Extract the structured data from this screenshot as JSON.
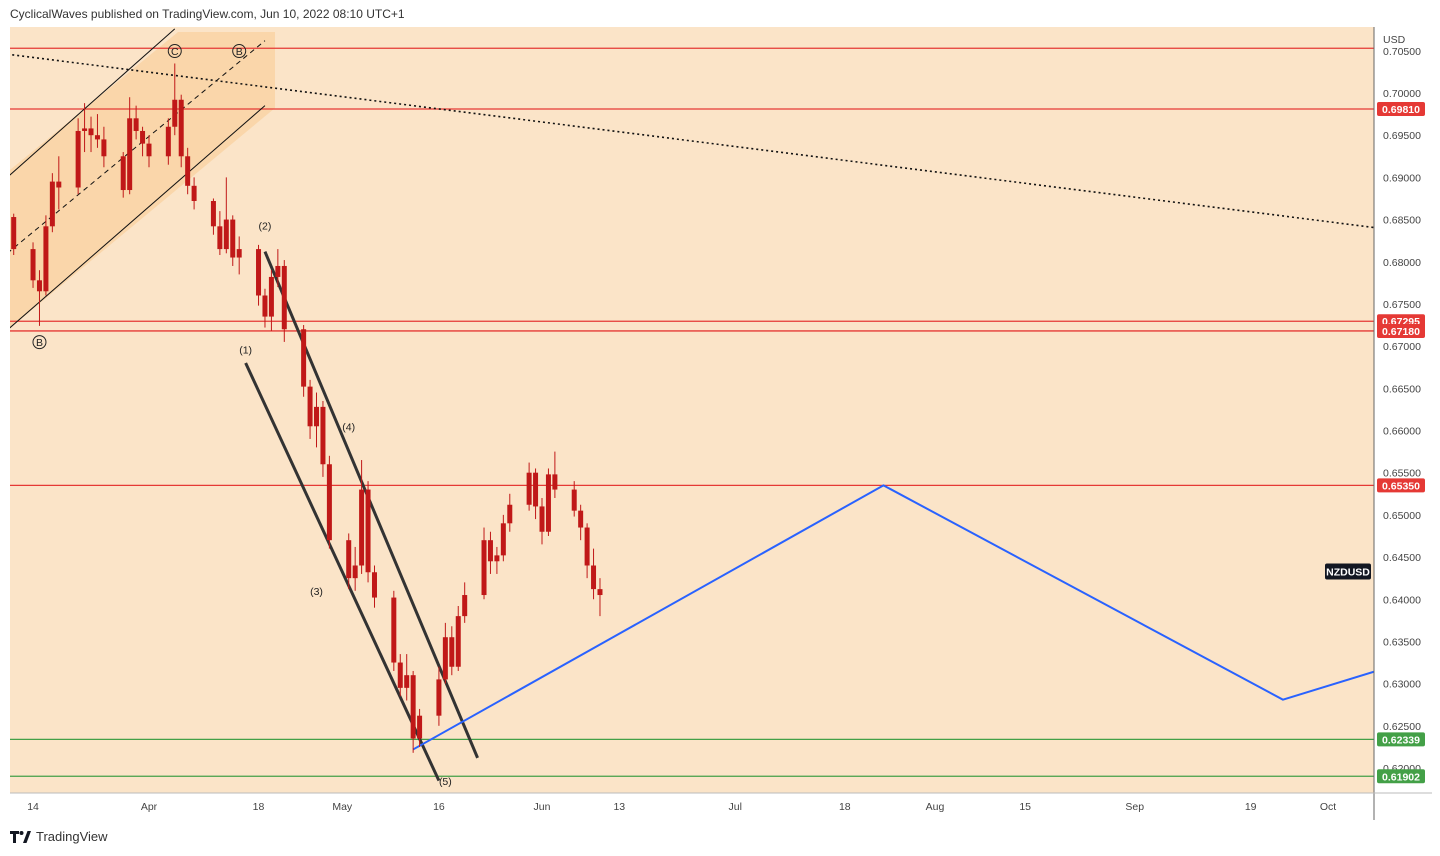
{
  "header": {
    "text": "CyclicalWaves published on TradingView.com, Jun 10, 2022 08:10 UTC+1"
  },
  "footer": {
    "brand": "TradingView",
    "logo_icon": "tradingview-logo-icon"
  },
  "colors": {
    "background": "#fbe4c8",
    "channel_fill": "#f9d4a4",
    "candle": "#c01818",
    "resistance": "#e53935",
    "support": "#43a047",
    "projection": "#2962ff",
    "trendline": "#111111"
  },
  "chart_data": {
    "type": "candlestick",
    "symbol": "NZDUSD",
    "currency": "USD",
    "y_ticks": [
      "0.70500",
      "0.70000",
      "0.69500",
      "0.69000",
      "0.68500",
      "0.68000",
      "0.67500",
      "0.67000",
      "0.66500",
      "0.66000",
      "0.65500",
      "0.65000",
      "0.64500",
      "0.64000",
      "0.63500",
      "0.63000",
      "0.62500",
      "0.62000"
    ],
    "x_ticks": [
      "14",
      "Apr",
      "18",
      "May",
      "16",
      "Jun",
      "13",
      "Jul",
      "18",
      "Aug",
      "15",
      "Sep",
      "19",
      "Oct"
    ],
    "price_levels": [
      {
        "value": 0.7053,
        "label": "",
        "kind": "resistance"
      },
      {
        "value": 0.6981,
        "label": "0.69810",
        "kind": "resistance"
      },
      {
        "value": 0.67295,
        "label": "0.67295",
        "kind": "resistance"
      },
      {
        "value": 0.6718,
        "label": "0.67180",
        "kind": "resistance"
      },
      {
        "value": 0.6535,
        "label": "0.65350",
        "kind": "resistance"
      },
      {
        "value": 0.62339,
        "label": "0.62339",
        "kind": "support"
      },
      {
        "value": 0.61902,
        "label": "0.61902",
        "kind": "support"
      }
    ],
    "symbol_price": 0.6408,
    "wave_labels": [
      {
        "text": "C",
        "circled": true,
        "date": "2022-04-05",
        "price": 0.7045
      },
      {
        "text": "B",
        "circled": true,
        "date": "2022-04-15",
        "price": 0.7045
      },
      {
        "text": "B",
        "circled": true,
        "date": "2022-03-15",
        "price": 0.67
      },
      {
        "text": "(1)",
        "circled": false,
        "date": "2022-04-16",
        "price": 0.6691
      },
      {
        "text": "(2)",
        "circled": false,
        "date": "2022-04-19",
        "price": 0.6838
      },
      {
        "text": "(3)",
        "circled": false,
        "date": "2022-04-27",
        "price": 0.6405
      },
      {
        "text": "(4)",
        "circled": false,
        "date": "2022-05-02",
        "price": 0.66
      },
      {
        "text": "(5)",
        "circled": false,
        "date": "2022-05-17",
        "price": 0.618
      }
    ],
    "projection_path": [
      {
        "date": "2022-05-12",
        "price": 0.6222
      },
      {
        "date": "2022-07-24",
        "price": 0.6535
      },
      {
        "date": "2022-09-24",
        "price": 0.6281
      },
      {
        "date": "2022-10-17",
        "price": 0.6335
      }
    ],
    "drawn_lines": [
      {
        "style": "dotted",
        "from": {
          "date": "2022-03-10",
          "price": 0.7046
        },
        "to": {
          "date": "2022-10-17",
          "price": 0.6832
        }
      },
      {
        "style": "channel-upper",
        "from": {
          "date": "2022-03-10",
          "price": 0.69
        },
        "to": {
          "date": "2022-04-05",
          "price": 0.7076
        }
      },
      {
        "style": "channel-lower",
        "from": {
          "date": "2022-03-10",
          "price": 0.6719
        },
        "to": {
          "date": "2022-04-19",
          "price": 0.6985
        }
      },
      {
        "style": "channel-mid",
        "from": {
          "date": "2022-03-10",
          "price": 0.681
        },
        "to": {
          "date": "2022-04-19",
          "price": 0.7062
        }
      },
      {
        "style": "channel-down",
        "from": {
          "date": "2022-04-19",
          "price": 0.6812
        },
        "to": {
          "date": "2022-05-22",
          "price": 0.6212
        }
      },
      {
        "style": "channel-down",
        "from": {
          "date": "2022-04-16",
          "price": 0.668
        },
        "to": {
          "date": "2022-05-16",
          "price": 0.6185
        }
      }
    ],
    "candles": [
      {
        "date": "2022-03-10",
        "o": 0.6863,
        "h": 0.6868,
        "l": 0.6843,
        "c": 0.6853
      },
      {
        "date": "2022-03-11",
        "o": 0.6853,
        "h": 0.6857,
        "l": 0.6808,
        "c": 0.6815
      },
      {
        "date": "2022-03-14",
        "o": 0.6815,
        "h": 0.6823,
        "l": 0.6769,
        "c": 0.6778
      },
      {
        "date": "2022-03-15",
        "o": 0.6778,
        "h": 0.679,
        "l": 0.6724,
        "c": 0.6765
      },
      {
        "date": "2022-03-16",
        "o": 0.6765,
        "h": 0.6855,
        "l": 0.676,
        "c": 0.6842
      },
      {
        "date": "2022-03-17",
        "o": 0.6842,
        "h": 0.6905,
        "l": 0.6835,
        "c": 0.6895
      },
      {
        "date": "2022-03-18",
        "o": 0.6895,
        "h": 0.6925,
        "l": 0.6862,
        "c": 0.6888
      },
      {
        "date": "2022-03-21",
        "o": 0.6888,
        "h": 0.697,
        "l": 0.688,
        "c": 0.6955
      },
      {
        "date": "2022-03-22",
        "o": 0.6955,
        "h": 0.6988,
        "l": 0.693,
        "c": 0.6958
      },
      {
        "date": "2022-03-23",
        "o": 0.6958,
        "h": 0.6972,
        "l": 0.693,
        "c": 0.695
      },
      {
        "date": "2022-03-24",
        "o": 0.695,
        "h": 0.6975,
        "l": 0.6935,
        "c": 0.6945
      },
      {
        "date": "2022-03-25",
        "o": 0.6945,
        "h": 0.696,
        "l": 0.6912,
        "c": 0.6925
      },
      {
        "date": "2022-03-28",
        "o": 0.6925,
        "h": 0.693,
        "l": 0.6876,
        "c": 0.6885
      },
      {
        "date": "2022-03-29",
        "o": 0.6885,
        "h": 0.6995,
        "l": 0.688,
        "c": 0.697
      },
      {
        "date": "2022-03-30",
        "o": 0.697,
        "h": 0.6985,
        "l": 0.6945,
        "c": 0.6955
      },
      {
        "date": "2022-03-31",
        "o": 0.6955,
        "h": 0.696,
        "l": 0.6925,
        "c": 0.694
      },
      {
        "date": "2022-04-01",
        "o": 0.694,
        "h": 0.695,
        "l": 0.6912,
        "c": 0.6925
      },
      {
        "date": "2022-04-04",
        "o": 0.6925,
        "h": 0.697,
        "l": 0.6915,
        "c": 0.696
      },
      {
        "date": "2022-04-05",
        "o": 0.696,
        "h": 0.7035,
        "l": 0.695,
        "c": 0.6992
      },
      {
        "date": "2022-04-06",
        "o": 0.6992,
        "h": 0.6998,
        "l": 0.6912,
        "c": 0.6925
      },
      {
        "date": "2022-04-07",
        "o": 0.6925,
        "h": 0.6935,
        "l": 0.688,
        "c": 0.689
      },
      {
        "date": "2022-04-08",
        "o": 0.689,
        "h": 0.69,
        "l": 0.6862,
        "c": 0.6872
      },
      {
        "date": "2022-04-11",
        "o": 0.6872,
        "h": 0.6875,
        "l": 0.6832,
        "c": 0.6842
      },
      {
        "date": "2022-04-12",
        "o": 0.6842,
        "h": 0.686,
        "l": 0.6808,
        "c": 0.6815
      },
      {
        "date": "2022-04-13",
        "o": 0.6815,
        "h": 0.69,
        "l": 0.681,
        "c": 0.685
      },
      {
        "date": "2022-04-14",
        "o": 0.685,
        "h": 0.6855,
        "l": 0.6795,
        "c": 0.6805
      },
      {
        "date": "2022-04-15",
        "o": 0.6805,
        "h": 0.683,
        "l": 0.6785,
        "c": 0.6815
      },
      {
        "date": "2022-04-18",
        "o": 0.6815,
        "h": 0.682,
        "l": 0.6748,
        "c": 0.676
      },
      {
        "date": "2022-04-19",
        "o": 0.676,
        "h": 0.6768,
        "l": 0.6722,
        "c": 0.6735
      },
      {
        "date": "2022-04-20",
        "o": 0.6735,
        "h": 0.679,
        "l": 0.6718,
        "c": 0.6782
      },
      {
        "date": "2022-04-21",
        "o": 0.6782,
        "h": 0.6815,
        "l": 0.677,
        "c": 0.6795
      },
      {
        "date": "2022-04-22",
        "o": 0.6795,
        "h": 0.6802,
        "l": 0.6705,
        "c": 0.672
      },
      {
        "date": "2022-04-25",
        "o": 0.672,
        "h": 0.6725,
        "l": 0.664,
        "c": 0.6652
      },
      {
        "date": "2022-04-26",
        "o": 0.6652,
        "h": 0.666,
        "l": 0.659,
        "c": 0.6605
      },
      {
        "date": "2022-04-27",
        "o": 0.6605,
        "h": 0.6645,
        "l": 0.658,
        "c": 0.6628
      },
      {
        "date": "2022-04-28",
        "o": 0.6628,
        "h": 0.6635,
        "l": 0.6545,
        "c": 0.656
      },
      {
        "date": "2022-04-29",
        "o": 0.656,
        "h": 0.657,
        "l": 0.646,
        "c": 0.647
      },
      {
        "date": "2022-05-02",
        "o": 0.647,
        "h": 0.6478,
        "l": 0.6412,
        "c": 0.6425
      },
      {
        "date": "2022-05-03",
        "o": 0.6425,
        "h": 0.6462,
        "l": 0.641,
        "c": 0.644
      },
      {
        "date": "2022-05-04",
        "o": 0.644,
        "h": 0.6565,
        "l": 0.643,
        "c": 0.653
      },
      {
        "date": "2022-05-05",
        "o": 0.653,
        "h": 0.654,
        "l": 0.642,
        "c": 0.6432
      },
      {
        "date": "2022-05-06",
        "o": 0.6432,
        "h": 0.644,
        "l": 0.639,
        "c": 0.6402
      },
      {
        "date": "2022-05-09",
        "o": 0.6402,
        "h": 0.641,
        "l": 0.6315,
        "c": 0.6325
      },
      {
        "date": "2022-05-10",
        "o": 0.6325,
        "h": 0.6335,
        "l": 0.6285,
        "c": 0.6295
      },
      {
        "date": "2022-05-11",
        "o": 0.6295,
        "h": 0.6335,
        "l": 0.628,
        "c": 0.631
      },
      {
        "date": "2022-05-12",
        "o": 0.631,
        "h": 0.6315,
        "l": 0.6218,
        "c": 0.6235
      },
      {
        "date": "2022-05-13",
        "o": 0.6235,
        "h": 0.627,
        "l": 0.6225,
        "c": 0.6262
      },
      {
        "date": "2022-05-16",
        "o": 0.6262,
        "h": 0.632,
        "l": 0.625,
        "c": 0.6305
      },
      {
        "date": "2022-05-17",
        "o": 0.6305,
        "h": 0.6372,
        "l": 0.63,
        "c": 0.6355
      },
      {
        "date": "2022-05-18",
        "o": 0.6355,
        "h": 0.6368,
        "l": 0.631,
        "c": 0.632
      },
      {
        "date": "2022-05-19",
        "o": 0.632,
        "h": 0.6392,
        "l": 0.6315,
        "c": 0.638
      },
      {
        "date": "2022-05-20",
        "o": 0.638,
        "h": 0.642,
        "l": 0.6372,
        "c": 0.6405
      },
      {
        "date": "2022-05-23",
        "o": 0.6405,
        "h": 0.6485,
        "l": 0.64,
        "c": 0.647
      },
      {
        "date": "2022-05-24",
        "o": 0.647,
        "h": 0.648,
        "l": 0.643,
        "c": 0.6445
      },
      {
        "date": "2022-05-25",
        "o": 0.6445,
        "h": 0.6462,
        "l": 0.643,
        "c": 0.6452
      },
      {
        "date": "2022-05-26",
        "o": 0.6452,
        "h": 0.65,
        "l": 0.6445,
        "c": 0.649
      },
      {
        "date": "2022-05-27",
        "o": 0.649,
        "h": 0.6525,
        "l": 0.648,
        "c": 0.6512
      },
      {
        "date": "2022-05-30",
        "o": 0.6512,
        "h": 0.6562,
        "l": 0.6505,
        "c": 0.655
      },
      {
        "date": "2022-05-31",
        "o": 0.655,
        "h": 0.6555,
        "l": 0.6495,
        "c": 0.651
      },
      {
        "date": "2022-06-01",
        "o": 0.651,
        "h": 0.652,
        "l": 0.6465,
        "c": 0.648
      },
      {
        "date": "2022-06-02",
        "o": 0.648,
        "h": 0.6555,
        "l": 0.6475,
        "c": 0.6548
      },
      {
        "date": "2022-06-03",
        "o": 0.6548,
        "h": 0.6575,
        "l": 0.652,
        "c": 0.653
      },
      {
        "date": "2022-06-06",
        "o": 0.653,
        "h": 0.654,
        "l": 0.6498,
        "c": 0.6505
      },
      {
        "date": "2022-06-07",
        "o": 0.6505,
        "h": 0.6512,
        "l": 0.647,
        "c": 0.6485
      },
      {
        "date": "2022-06-08",
        "o": 0.6485,
        "h": 0.649,
        "l": 0.6425,
        "c": 0.644
      },
      {
        "date": "2022-06-09",
        "o": 0.644,
        "h": 0.646,
        "l": 0.64,
        "c": 0.6412
      },
      {
        "date": "2022-06-10",
        "o": 0.6412,
        "h": 0.6425,
        "l": 0.638,
        "c": 0.6405
      }
    ]
  }
}
